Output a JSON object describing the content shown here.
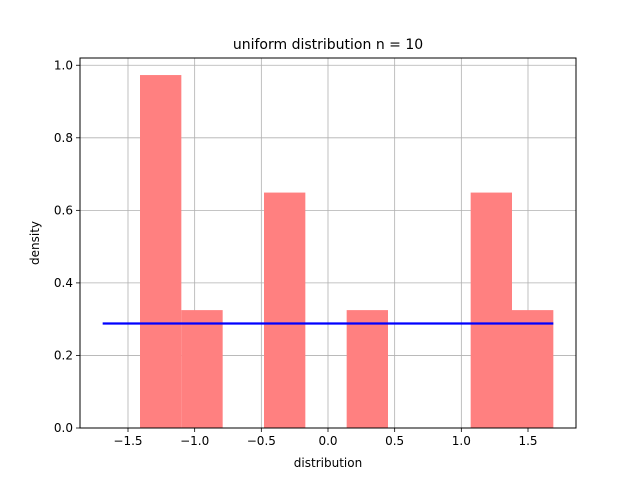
{
  "chart_data": {
    "type": "bar",
    "title": "uniform distribution n = 10",
    "xlabel": "distribution",
    "ylabel": "density",
    "xlim": [
      -1.86,
      1.86
    ],
    "ylim": [
      0.0,
      1.02
    ],
    "xticks": [
      -1.5,
      -1.0,
      -0.5,
      0.0,
      0.5,
      1.0,
      1.5
    ],
    "xtick_labels": [
      "−1.5",
      "−1.0",
      "−0.5",
      "0.0",
      "0.5",
      "1.0",
      "1.5"
    ],
    "yticks": [
      0.0,
      0.2,
      0.4,
      0.6,
      0.8,
      1.0
    ],
    "ytick_labels": [
      "0.0",
      "0.2",
      "0.4",
      "0.6",
      "0.8",
      "1.0"
    ],
    "grid": true,
    "histogram": {
      "color": "#ff8080",
      "bins": [
        {
          "x0": -1.41,
          "x1": -1.1,
          "density": 0.973
        },
        {
          "x0": -1.1,
          "x1": -0.79,
          "density": 0.325
        },
        {
          "x0": -0.79,
          "x1": -0.48,
          "density": 0.0
        },
        {
          "x0": -0.48,
          "x1": -0.17,
          "density": 0.649
        },
        {
          "x0": -0.17,
          "x1": 0.14,
          "density": 0.0
        },
        {
          "x0": 0.14,
          "x1": 0.45,
          "density": 0.325
        },
        {
          "x0": 0.45,
          "x1": 0.76,
          "density": 0.0
        },
        {
          "x0": 0.76,
          "x1": 1.07,
          "density": 0.0
        },
        {
          "x0": 1.07,
          "x1": 1.38,
          "density": 0.649
        },
        {
          "x0": 1.38,
          "x1": 1.69,
          "density": 0.325
        }
      ]
    },
    "line": {
      "color": "#0000ff",
      "x": [
        -1.69,
        1.69
      ],
      "y": [
        0.288,
        0.288
      ]
    }
  }
}
